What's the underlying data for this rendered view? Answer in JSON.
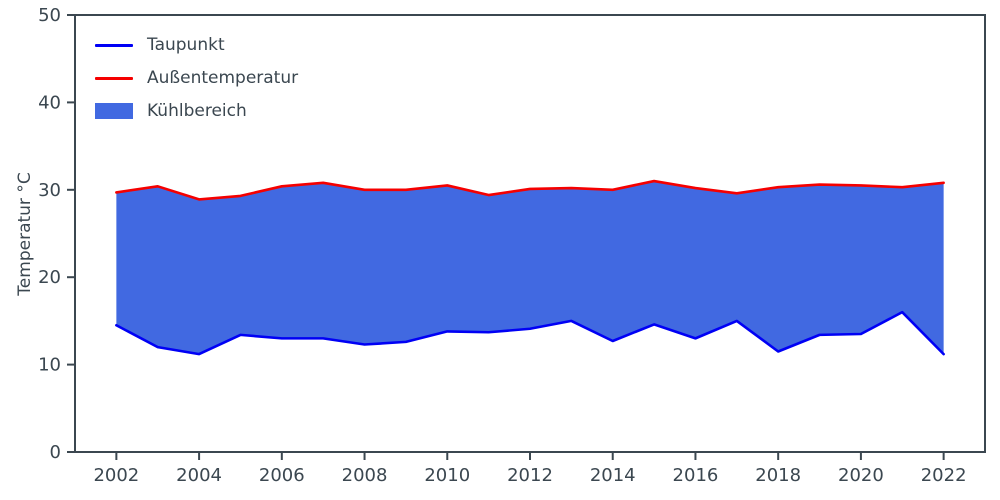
{
  "chart_data": {
    "type": "area",
    "title": "",
    "xlabel": "",
    "ylabel": "Temperatur °C",
    "x": [
      2002,
      2003,
      2004,
      2005,
      2006,
      2007,
      2008,
      2009,
      2010,
      2011,
      2012,
      2013,
      2014,
      2015,
      2016,
      2017,
      2018,
      2019,
      2020,
      2021,
      2022
    ],
    "series": [
      {
        "name": "Taupunkt",
        "color": "#0000f5",
        "values": [
          14.5,
          12.0,
          11.2,
          13.4,
          13.0,
          13.0,
          12.3,
          12.6,
          13.8,
          13.7,
          14.1,
          15.0,
          12.7,
          14.6,
          13.0,
          15.0,
          11.5,
          13.4,
          13.5,
          16.0,
          11.2
        ]
      },
      {
        "name": "Außentemperatur",
        "color": "#f50000",
        "values": [
          29.7,
          30.4,
          28.9,
          29.3,
          30.4,
          30.8,
          30.0,
          30.0,
          30.5,
          29.4,
          30.1,
          30.2,
          30.0,
          31.0,
          30.2,
          29.6,
          30.3,
          30.6,
          30.5,
          30.3,
          30.8
        ]
      }
    ],
    "fill": {
      "name": "Kühlbereich",
      "color": "#4169e1",
      "between": [
        "Taupunkt",
        "Außentemperatur"
      ]
    },
    "xlim": [
      2001,
      2023
    ],
    "ylim": [
      0,
      50
    ],
    "xticks": [
      2002,
      2004,
      2006,
      2008,
      2010,
      2012,
      2014,
      2016,
      2018,
      2020,
      2022
    ],
    "yticks": [
      0,
      10,
      20,
      30,
      40,
      50
    ],
    "legend_position": "upper-left",
    "grid": false,
    "text_color": "#3b4750",
    "axis_color": "#3b4750"
  }
}
